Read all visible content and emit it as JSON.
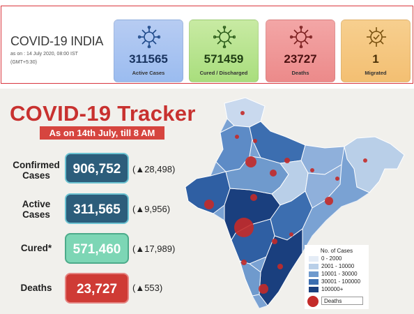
{
  "header": {
    "title": "COVID-19 INDIA",
    "as_on": "as on : 14 July 2020, 08:00 IST",
    "timezone": "(GMT+5:30)"
  },
  "stat_cards": {
    "active": {
      "value": "311565",
      "label": "Active Cases",
      "color": "#a9c4f2",
      "icon": "virus-icon"
    },
    "cured": {
      "value": "571459",
      "label": "Cured / Discharged",
      "color": "#b7e48f",
      "icon": "virus-icon"
    },
    "deaths": {
      "value": "23727",
      "label": "Deaths",
      "color": "#f09898",
      "icon": "virus-icon"
    },
    "migrated": {
      "value": "1",
      "label": "Migrated",
      "color": "#f5c77f",
      "icon": "virus-shield-icon"
    }
  },
  "tracker": {
    "title": "COVID-19 Tracker",
    "date_banner": "As on 14th July, till 8 AM",
    "rows": {
      "confirmed": {
        "label": "Confirmed Cases",
        "value": "906,752",
        "delta": "(▲28,498)"
      },
      "active": {
        "label": "Active Cases",
        "value": "311,565",
        "delta": "(▲9,956)"
      },
      "cured": {
        "label": "Cured*",
        "value": "571,460",
        "delta": "(▲17,989)"
      },
      "deaths": {
        "label": "Deaths",
        "value": "23,727",
        "delta": "(▲553)"
      }
    },
    "accent_color": "#c8312f"
  },
  "legend": {
    "title": "No. of Cases",
    "items": [
      {
        "label": "0 - 2000",
        "color": "#e4ecf6"
      },
      {
        "label": "2001 - 10000",
        "color": "#b9cfe8"
      },
      {
        "label": "10001 - 30000",
        "color": "#6f9acd"
      },
      {
        "label": "30001 - 100000",
        "color": "#3c6eb0"
      },
      {
        "label": "100000+",
        "color": "#1a3f7e"
      }
    ],
    "deaths_label": "Deaths",
    "deaths_color": "#c42b29"
  }
}
